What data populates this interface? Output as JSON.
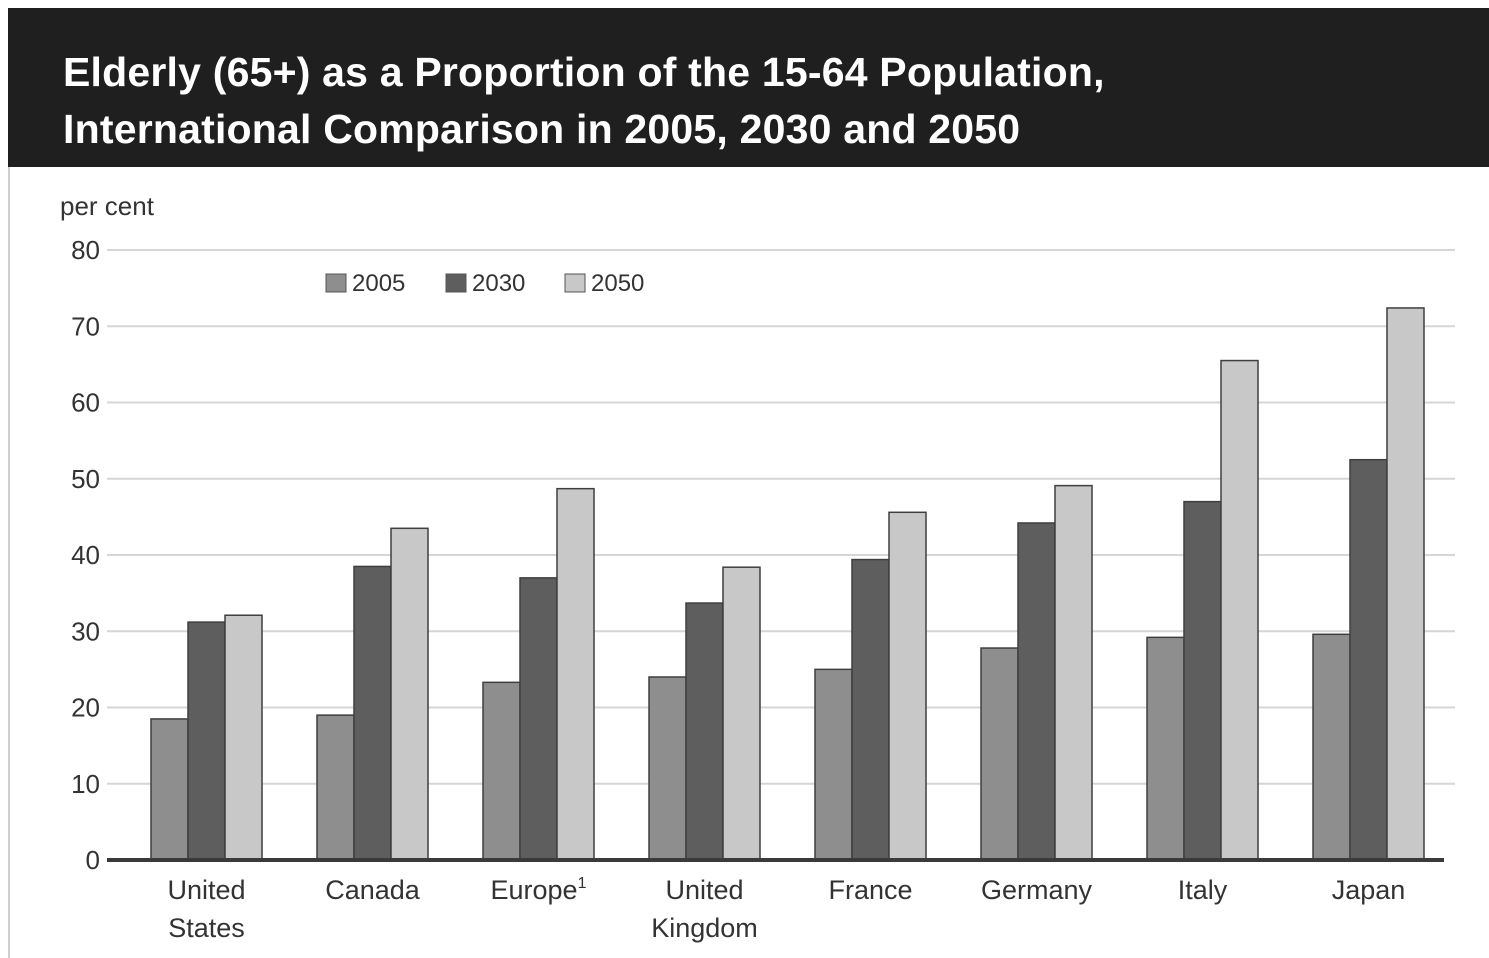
{
  "title_lines": [
    "Elderly (65+) as a Proportion of the 15-64 Population,",
    "International Comparison in 2005, 2030 and 2050"
  ],
  "colors": {
    "title_bg": "#1f1f1f",
    "title_text": "#ffffff",
    "series_2005": "#8e8e8e",
    "series_2030": "#5e5e5e",
    "series_2050": "#c8c8c8",
    "grid": "#d6d6d6",
    "axis": "#3a3a3a",
    "text": "#333333"
  },
  "chart_data": {
    "type": "bar",
    "title": "Elderly (65+) as a Proportion of the 15-64 Population, International Comparison in 2005, 2030 and 2050",
    "ylabel": "per cent",
    "xlabel": "",
    "ylim": [
      0,
      80
    ],
    "yticks": [
      0,
      10,
      20,
      30,
      40,
      50,
      60,
      70,
      80
    ],
    "grid": true,
    "legend_position": "top-left",
    "categories": [
      [
        "United",
        "States"
      ],
      [
        "Canada"
      ],
      [
        "Europe",
        "1"
      ],
      [
        "United",
        "Kingdom"
      ],
      [
        "France"
      ],
      [
        "Germany"
      ],
      [
        "Italy"
      ],
      [
        "Japan"
      ]
    ],
    "series": [
      {
        "name": "2005",
        "color": "#8e8e8e",
        "values": [
          18.5,
          19,
          23.3,
          24,
          25,
          27.8,
          29.2,
          29.6
        ]
      },
      {
        "name": "2030",
        "color": "#5e5e5e",
        "values": [
          31.2,
          38.5,
          37,
          33.7,
          39.4,
          44.2,
          47,
          52.5
        ]
      },
      {
        "name": "2050",
        "color": "#c8c8c8",
        "values": [
          32.1,
          43.5,
          48.7,
          38.4,
          45.6,
          49.1,
          65.5,
          72.4
        ]
      }
    ]
  }
}
